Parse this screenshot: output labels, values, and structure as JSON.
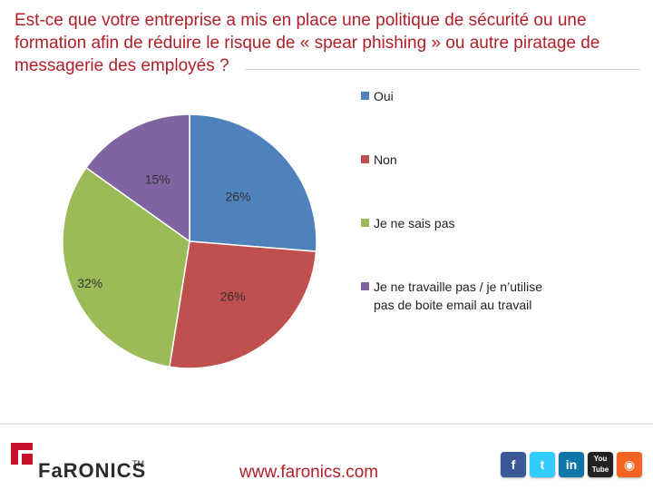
{
  "title": "Est-ce que votre entreprise a mis en place une politique de sécurité ou une formation afin de réduire le risque de « spear phishing » ou autre piratage de messagerie des employés ?",
  "chart_data": {
    "type": "pie",
    "title": "Est-ce que votre entreprise a mis en place une politique de sécurité ou une formation afin de réduire le risque de « spear phishing » ou autre piratage de messagerie des employés ?",
    "categories": [
      "Oui",
      "Non",
      "Je ne sais pas",
      "Je ne travaille pas / je n'utilise pas de boite email au travail"
    ],
    "values": [
      26,
      26,
      32,
      15
    ],
    "labels": [
      "26%",
      "26%",
      "32%",
      "15%"
    ],
    "colors": [
      "#4f81bd",
      "#c0504d",
      "#9bbb59",
      "#8064a2"
    ],
    "legend_position": "right",
    "legend": [
      {
        "lines": [
          "Oui"
        ]
      },
      {
        "lines": [
          "Non"
        ]
      },
      {
        "lines": [
          "Je ne sais pas"
        ]
      },
      {
        "lines": [
          "Je ne travaille pas / je n’utilise",
          "pas de boite email au travail"
        ]
      }
    ]
  },
  "footer": {
    "logo_text": "FaRONICS",
    "logo_tm": "TM",
    "website": "www.faronics.com",
    "social": [
      {
        "icon": "facebook-icon",
        "glyph": "f",
        "color": "#3b5998"
      },
      {
        "icon": "twitter-icon",
        "glyph": "t",
        "color": "#33ccff"
      },
      {
        "icon": "linkedin-icon",
        "glyph": "in",
        "color": "#0e76a8"
      },
      {
        "icon": "youtube-icon",
        "glyph": "You Tube",
        "color": "#222222"
      },
      {
        "icon": "rss-icon",
        "glyph": "◉",
        "color": "#f26522"
      }
    ]
  }
}
